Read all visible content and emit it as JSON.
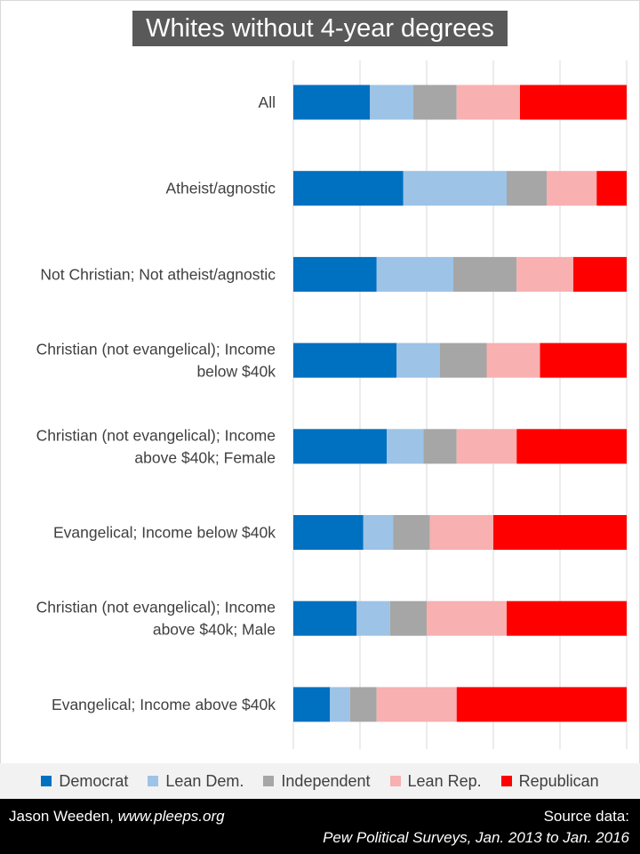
{
  "chart_data": {
    "type": "bar",
    "orientation": "horizontal",
    "stacked": true,
    "normalized": true,
    "title": "Whites without 4-year degrees",
    "categories": [
      "All",
      "Atheist/agnostic",
      "Not Christian; Not atheist/agnostic",
      "Christian (not evangelical); Income below $40k",
      "Christian (not evangelical); Income above $40k; Female",
      "Evangelical; Income below $40k",
      "Christian (not evangelical); Income above $40k; Male",
      "Evangelical; Income above $40k"
    ],
    "category_lines": [
      [
        "All"
      ],
      [
        "Atheist/agnostic"
      ],
      [
        "Not Christian; Not atheist/agnostic"
      ],
      [
        "Christian (not evangelical); Income",
        "below $40k"
      ],
      [
        "Christian (not evangelical); Income",
        "above $40k; Female"
      ],
      [
        "Evangelical; Income below $40k"
      ],
      [
        "Christian (not evangelical); Income",
        "above $40k; Male"
      ],
      [
        "Evangelical; Income above $40k"
      ]
    ],
    "series": [
      {
        "name": "Democrat",
        "color": "#0070c0",
        "values": [
          23,
          33,
          25,
          31,
          28,
          21,
          19,
          11
        ]
      },
      {
        "name": "Lean Dem.",
        "color": "#9dc3e6",
        "values": [
          13,
          31,
          23,
          13,
          11,
          9,
          10,
          6
        ]
      },
      {
        "name": "Independent",
        "color": "#a6a6a6",
        "values": [
          13,
          12,
          19,
          14,
          10,
          11,
          11,
          8
        ]
      },
      {
        "name": "Lean Rep.",
        "color": "#f8b0b0",
        "values": [
          19,
          15,
          17,
          16,
          18,
          19,
          24,
          24
        ]
      },
      {
        "name": "Republican",
        "color": "#ff0000",
        "values": [
          32,
          9,
          16,
          26,
          33,
          40,
          36,
          51
        ]
      }
    ],
    "xlim": [
      0,
      100
    ],
    "grid": true,
    "legend_position": "bottom"
  },
  "footer": {
    "author": "Jason Weeden,",
    "site": "www.pleeps.org",
    "source_label": "Source data:",
    "source_text": "Pew  Political Surveys, Jan. 2013 to Jan. 2016"
  }
}
